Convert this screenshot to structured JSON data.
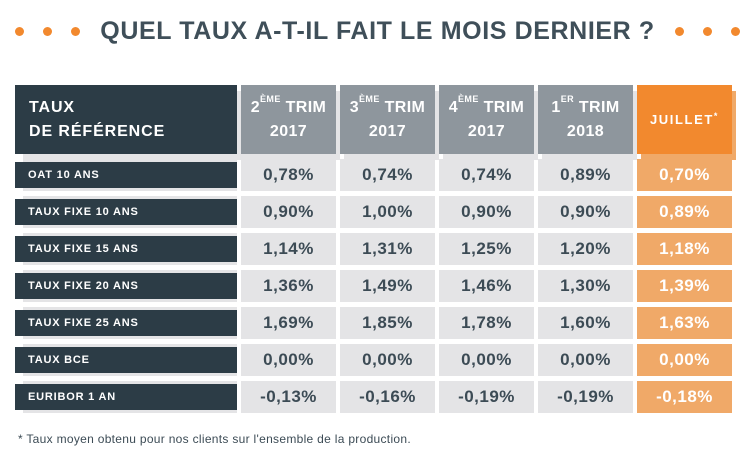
{
  "title": {
    "text": "QUEL TAUX A-T-IL FAIT LE MOIS DERNIER ?"
  },
  "colors": {
    "dark_slate": "#2C3C46",
    "gray_header": "#8E969D",
    "light_gray_cell": "#E4E4E6",
    "orange": "#F2892E",
    "light_orange": "#F0A968",
    "title_text": "#3F4F59",
    "cell_text": "#3C4B55"
  },
  "table": {
    "corner": {
      "line1": "TAUX",
      "line2": "DE RÉFÉRENCE"
    },
    "columns": [
      {
        "num": "2",
        "sup": "ÈME",
        "tail": " TRIM",
        "year": "2017"
      },
      {
        "num": "3",
        "sup": "ÈME",
        "tail": " TRIM",
        "year": "2017"
      },
      {
        "num": "4",
        "sup": "ÈME",
        "tail": " TRIM",
        "year": "2017"
      },
      {
        "num": "1",
        "sup": "ER",
        "tail": " TRIM",
        "year": "2018"
      }
    ],
    "highlight_column": {
      "label": "JUILLET",
      "sup": "*"
    },
    "rows": [
      {
        "label": "OAT 10 ANS",
        "values": [
          "0,78%",
          "0,74%",
          "0,74%",
          "0,89%"
        ],
        "highlight": "0,70%"
      },
      {
        "label": "TAUX FIXE 10 ANS",
        "values": [
          "0,90%",
          "1,00%",
          "0,90%",
          "0,90%"
        ],
        "highlight": "0,89%"
      },
      {
        "label": "TAUX FIXE 15 ANS",
        "values": [
          "1,14%",
          "1,31%",
          "1,25%",
          "1,20%"
        ],
        "highlight": "1,18%"
      },
      {
        "label": "TAUX FIXE 20 ANS",
        "values": [
          "1,36%",
          "1,49%",
          "1,46%",
          "1,30%"
        ],
        "highlight": "1,39%"
      },
      {
        "label": "TAUX FIXE 25 ANS",
        "values": [
          "1,69%",
          "1,85%",
          "1,78%",
          "1,60%"
        ],
        "highlight": "1,63%"
      },
      {
        "label": "TAUX BCE",
        "values": [
          "0,00%",
          "0,00%",
          "0,00%",
          "0,00%"
        ],
        "highlight": "0,00%"
      },
      {
        "label": "EURIBOR 1 AN",
        "values": [
          "-0,13%",
          "-0,16%",
          "-0,19%",
          "-0,19%"
        ],
        "highlight": "-0,18%"
      }
    ]
  },
  "footnote": "* Taux moyen obtenu pour nos clients sur l'ensemble de la production.",
  "chart_data": {
    "type": "table",
    "title": "QUEL TAUX A-T-IL FAIT LE MOIS DERNIER ?",
    "row_header": "TAUX DE RÉFÉRENCE",
    "columns": [
      "2ème Trim 2017",
      "3ème Trim 2017",
      "4ème Trim 2017",
      "1er Trim 2018",
      "Juillet*"
    ],
    "rows": [
      {
        "label": "OAT 10 ANS",
        "values_pct": [
          0.78,
          0.74,
          0.74,
          0.89,
          0.7
        ]
      },
      {
        "label": "TAUX FIXE 10 ANS",
        "values_pct": [
          0.9,
          1.0,
          0.9,
          0.9,
          0.89
        ]
      },
      {
        "label": "TAUX FIXE 15 ANS",
        "values_pct": [
          1.14,
          1.31,
          1.25,
          1.2,
          1.18
        ]
      },
      {
        "label": "TAUX FIXE 20 ANS",
        "values_pct": [
          1.36,
          1.49,
          1.46,
          1.3,
          1.39
        ]
      },
      {
        "label": "TAUX FIXE 25 ANS",
        "values_pct": [
          1.69,
          1.85,
          1.78,
          1.6,
          1.63
        ]
      },
      {
        "label": "TAUX BCE",
        "values_pct": [
          0.0,
          0.0,
          0.0,
          0.0,
          0.0
        ]
      },
      {
        "label": "EURIBOR 1 AN",
        "values_pct": [
          -0.13,
          -0.16,
          -0.19,
          -0.19,
          -0.18
        ]
      }
    ],
    "footnote": "* Taux moyen obtenu pour nos clients sur l'ensemble de la production.",
    "highlight_last_column": true
  }
}
